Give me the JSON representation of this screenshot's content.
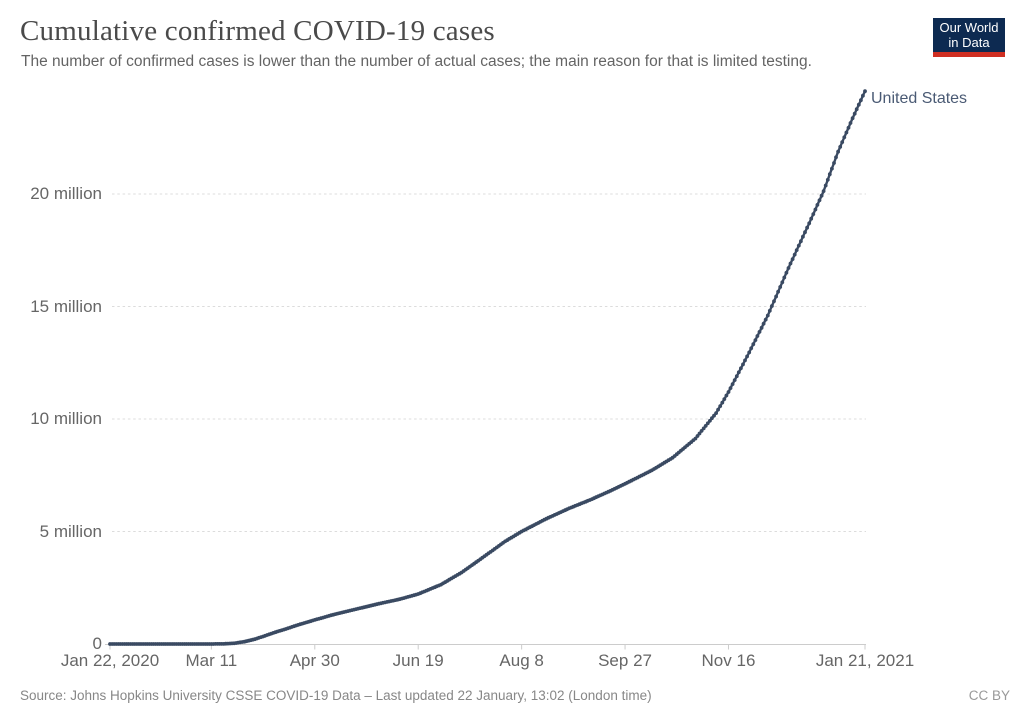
{
  "header": {
    "title": "Cumulative confirmed COVID-19 cases",
    "subtitle": "The number of confirmed cases is lower than the number of actual cases; the main reason for that is limited testing.",
    "logo_line1": "Our World",
    "logo_line2": "in Data",
    "logo_bg_color": "#0d2a51",
    "logo_bar_color": "#cf2e22"
  },
  "footer": {
    "source": "Source: Johns Hopkins University CSSE COVID-19 Data – Last updated 22 January, 13:02 (London time)",
    "license": "CC BY"
  },
  "chart_data": {
    "type": "line",
    "title": "Cumulative confirmed COVID-19 cases",
    "xlabel": "",
    "ylabel": "",
    "grid": "horizontal-dashed",
    "legend_position": "end-of-line",
    "xlim_days": [
      0,
      365
    ],
    "ylim_millions": [
      0,
      24.9
    ],
    "x_ticks": [
      {
        "day": 0,
        "label": "Jan 22, 2020"
      },
      {
        "day": 49,
        "label": "Mar 11"
      },
      {
        "day": 99,
        "label": "Apr 30"
      },
      {
        "day": 149,
        "label": "Jun 19"
      },
      {
        "day": 199,
        "label": "Aug 8"
      },
      {
        "day": 249,
        "label": "Sep 27"
      },
      {
        "day": 299,
        "label": "Nov 16"
      },
      {
        "day": 365,
        "label": "Jan 21, 2021"
      }
    ],
    "y_ticks": [
      {
        "value": 0,
        "label": "0"
      },
      {
        "value": 5,
        "label": "5 million"
      },
      {
        "value": 10,
        "label": "10 million"
      },
      {
        "value": 15,
        "label": "15 million"
      },
      {
        "value": 20,
        "label": "20 million"
      }
    ],
    "series": [
      {
        "name": "United States",
        "color": "#3a4a62",
        "label_color": "#4a5a74",
        "points": [
          {
            "day": 0,
            "date": "2020-01-22",
            "cases_millions": 1e-06
          },
          {
            "day": 20,
            "date": "2020-02-11",
            "cases_millions": 1.3e-05
          },
          {
            "day": 40,
            "date": "2020-03-02",
            "cases_millions": 0.0001
          },
          {
            "day": 49,
            "date": "2020-03-11",
            "cases_millions": 0.0013
          },
          {
            "day": 55,
            "date": "2020-03-17",
            "cases_millions": 0.006
          },
          {
            "day": 60,
            "date": "2020-03-22",
            "cases_millions": 0.033
          },
          {
            "day": 65,
            "date": "2020-03-27",
            "cases_millions": 0.101
          },
          {
            "day": 70,
            "date": "2020-04-01",
            "cases_millions": 0.213
          },
          {
            "day": 75,
            "date": "2020-04-06",
            "cases_millions": 0.366
          },
          {
            "day": 80,
            "date": "2020-04-11",
            "cases_millions": 0.526
          },
          {
            "day": 85,
            "date": "2020-04-16",
            "cases_millions": 0.667
          },
          {
            "day": 90,
            "date": "2020-04-21",
            "cases_millions": 0.823
          },
          {
            "day": 99,
            "date": "2020-04-30",
            "cases_millions": 1.07
          },
          {
            "day": 109,
            "date": "2020-05-10",
            "cases_millions": 1.33
          },
          {
            "day": 119,
            "date": "2020-05-20",
            "cases_millions": 1.55
          },
          {
            "day": 130,
            "date": "2020-05-31",
            "cases_millions": 1.79
          },
          {
            "day": 140,
            "date": "2020-06-10",
            "cases_millions": 1.99
          },
          {
            "day": 149,
            "date": "2020-06-19",
            "cases_millions": 2.22
          },
          {
            "day": 160,
            "date": "2020-06-30",
            "cases_millions": 2.64
          },
          {
            "day": 170,
            "date": "2020-07-10",
            "cases_millions": 3.18
          },
          {
            "day": 180,
            "date": "2020-07-20",
            "cases_millions": 3.83
          },
          {
            "day": 191,
            "date": "2020-07-31",
            "cases_millions": 4.56
          },
          {
            "day": 199,
            "date": "2020-08-08",
            "cases_millions": 5.0
          },
          {
            "day": 211,
            "date": "2020-08-20",
            "cases_millions": 5.57
          },
          {
            "day": 222,
            "date": "2020-08-31",
            "cases_millions": 6.03
          },
          {
            "day": 232,
            "date": "2020-09-10",
            "cases_millions": 6.4
          },
          {
            "day": 242,
            "date": "2020-09-20",
            "cases_millions": 6.81
          },
          {
            "day": 249,
            "date": "2020-09-27",
            "cases_millions": 7.12
          },
          {
            "day": 262,
            "date": "2020-10-10",
            "cases_millions": 7.72
          },
          {
            "day": 272,
            "date": "2020-10-20",
            "cases_millions": 8.28
          },
          {
            "day": 283,
            "date": "2020-10-31",
            "cases_millions": 9.13
          },
          {
            "day": 293,
            "date": "2020-11-10",
            "cases_millions": 10.26
          },
          {
            "day": 299,
            "date": "2020-11-16",
            "cases_millions": 11.2
          },
          {
            "day": 308,
            "date": "2020-11-25",
            "cases_millions": 12.78
          },
          {
            "day": 318,
            "date": "2020-12-05",
            "cases_millions": 14.6
          },
          {
            "day": 328,
            "date": "2020-12-15",
            "cases_millions": 16.71
          },
          {
            "day": 338,
            "date": "2020-12-25",
            "cases_millions": 18.7
          },
          {
            "day": 345,
            "date": "2021-01-01",
            "cases_millions": 20.13
          },
          {
            "day": 352,
            "date": "2021-01-08",
            "cases_millions": 21.88
          },
          {
            "day": 359,
            "date": "2021-01-15",
            "cases_millions": 23.37
          },
          {
            "day": 365,
            "date": "2021-01-21",
            "cases_millions": 24.57
          }
        ]
      }
    ]
  }
}
